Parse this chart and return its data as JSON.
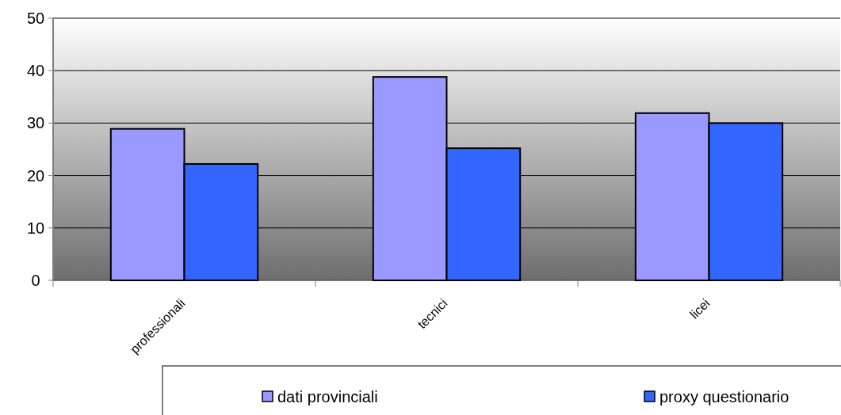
{
  "chart_data": {
    "type": "bar",
    "categories": [
      "professionali",
      "tecnici",
      "licei"
    ],
    "series": [
      {
        "name": "dati provinciali",
        "color": "#9999ff",
        "values": [
          28.9,
          38.8,
          31.9
        ]
      },
      {
        "name": "proxy questionario",
        "color": "#3366ff",
        "values": [
          22.2,
          25.2,
          30.0
        ]
      }
    ],
    "ylim": [
      0,
      50
    ],
    "yticks": [
      0,
      10,
      20,
      30,
      40,
      50
    ],
    "grid": "y",
    "legend": "bottom"
  }
}
